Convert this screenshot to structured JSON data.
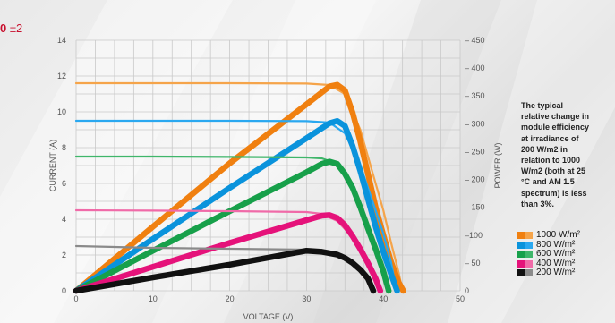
{
  "header": {
    "fragment": "0",
    "tolerance": "±2"
  },
  "note": "The typical relative change in module efficiency at irradiance of 200 W/m2 in relation to 1000 W/m2 (both at 25 °C and AM 1.5 spectrum) is less than 3%.",
  "chart_data": {
    "type": "line",
    "xlabel": "VOLTAGE (V)",
    "ylabel": "CURRENT (A)",
    "y2label": "POWER (W)",
    "xlim": [
      0,
      50
    ],
    "ylim": [
      0,
      14
    ],
    "y2lim": [
      0,
      450
    ],
    "x_ticks": [
      0,
      10,
      20,
      30,
      40,
      50
    ],
    "y_ticks": [
      0,
      2,
      4,
      6,
      8,
      10,
      12,
      14
    ],
    "y2_ticks": [
      0,
      50,
      100,
      150,
      200,
      250,
      300,
      350,
      400,
      450
    ],
    "y2_tick_labels": [
      "0",
      "– 50",
      "–100",
      "– 150",
      "– 200",
      "– 250",
      "– 300",
      "– 350",
      "– 400",
      "– 450"
    ],
    "grid": true,
    "legend_position": "right",
    "series": [
      {
        "name": "1000 W/m²",
        "iv_color": "#f5a44a",
        "pv_color": "#f08010",
        "iv": [
          [
            0,
            11.6
          ],
          [
            10,
            11.6
          ],
          [
            20,
            11.6
          ],
          [
            30,
            11.58
          ],
          [
            33,
            11.5
          ],
          [
            35,
            11
          ],
          [
            37,
            9
          ],
          [
            39,
            6
          ],
          [
            40,
            4.5
          ],
          [
            41,
            2.7
          ],
          [
            42,
            1
          ],
          [
            42.5,
            0
          ]
        ],
        "pv": [
          [
            0,
            0
          ],
          [
            10,
            115
          ],
          [
            20,
            229
          ],
          [
            30,
            335
          ],
          [
            33,
            367
          ],
          [
            34,
            370
          ],
          [
            35,
            360
          ],
          [
            36,
            320
          ],
          [
            37,
            268
          ],
          [
            38,
            210
          ],
          [
            39,
            150
          ],
          [
            40,
            100
          ],
          [
            41,
            52
          ],
          [
            42,
            15
          ],
          [
            42.6,
            0
          ]
        ]
      },
      {
        "name": "800 W/m²",
        "iv_color": "#2aa8f0",
        "pv_color": "#0a93dc",
        "iv": [
          [
            0,
            9.5
          ],
          [
            10,
            9.5
          ],
          [
            20,
            9.5
          ],
          [
            30,
            9.48
          ],
          [
            33,
            9.4
          ],
          [
            35,
            8.8
          ],
          [
            37,
            7
          ],
          [
            39,
            4.5
          ],
          [
            40,
            3.2
          ],
          [
            41,
            1.6
          ],
          [
            41.7,
            0
          ]
        ],
        "pv": [
          [
            0,
            0
          ],
          [
            10,
            93
          ],
          [
            20,
            185
          ],
          [
            30,
            274
          ],
          [
            33,
            301
          ],
          [
            34,
            305
          ],
          [
            35,
            296
          ],
          [
            36,
            260
          ],
          [
            37,
            215
          ],
          [
            38,
            165
          ],
          [
            39,
            115
          ],
          [
            40,
            70
          ],
          [
            41,
            30
          ],
          [
            41.8,
            0
          ]
        ]
      },
      {
        "name": "600 W/m²",
        "iv_color": "#3fb66a",
        "pv_color": "#17a04a",
        "iv": [
          [
            0,
            7.5
          ],
          [
            10,
            7.5
          ],
          [
            20,
            7.48
          ],
          [
            30,
            7.45
          ],
          [
            32,
            7.4
          ],
          [
            34,
            7.1
          ],
          [
            36,
            6
          ],
          [
            38,
            3.8
          ],
          [
            39,
            2.5
          ],
          [
            40,
            1.1
          ],
          [
            40.6,
            0
          ]
        ],
        "pv": [
          [
            0,
            0
          ],
          [
            10,
            72
          ],
          [
            20,
            143
          ],
          [
            30,
            213
          ],
          [
            32,
            228
          ],
          [
            33,
            232
          ],
          [
            34,
            228
          ],
          [
            35,
            210
          ],
          [
            36,
            185
          ],
          [
            37,
            150
          ],
          [
            38,
            112
          ],
          [
            39,
            75
          ],
          [
            40,
            35
          ],
          [
            40.7,
            0
          ]
        ]
      },
      {
        "name": "400 W/m²",
        "iv_color": "#f06aa8",
        "pv_color": "#e5127a",
        "iv": [
          [
            0,
            4.5
          ],
          [
            10,
            4.48
          ],
          [
            20,
            4.45
          ],
          [
            30,
            4.4
          ],
          [
            32,
            4.3
          ],
          [
            34,
            3.9
          ],
          [
            36,
            3
          ],
          [
            37,
            2.3
          ],
          [
            38,
            1.5
          ],
          [
            39,
            0.6
          ],
          [
            39.5,
            0
          ]
        ],
        "pv": [
          [
            0,
            0
          ],
          [
            10,
            43
          ],
          [
            20,
            86
          ],
          [
            30,
            127
          ],
          [
            32,
            135
          ],
          [
            33,
            136
          ],
          [
            34,
            131
          ],
          [
            35,
            118
          ],
          [
            36,
            98
          ],
          [
            37,
            75
          ],
          [
            38,
            50
          ],
          [
            39,
            22
          ],
          [
            39.6,
            0
          ]
        ]
      },
      {
        "name": "200 W/m²",
        "iv_color": "#8a8a8a",
        "pv_color": "#111111",
        "iv": [
          [
            0,
            2.5
          ],
          [
            10,
            2.4
          ],
          [
            20,
            2.35
          ],
          [
            30,
            2.3
          ],
          [
            33,
            2.15
          ],
          [
            35,
            1.8
          ],
          [
            37,
            1.2
          ],
          [
            38,
            0.7
          ],
          [
            38.7,
            0
          ]
        ],
        "pv": [
          [
            0,
            0
          ],
          [
            10,
            24
          ],
          [
            20,
            47
          ],
          [
            28,
            67
          ],
          [
            30,
            72
          ],
          [
            32,
            70
          ],
          [
            34,
            65
          ],
          [
            35,
            59
          ],
          [
            36,
            50
          ],
          [
            37,
            38
          ],
          [
            38,
            22
          ],
          [
            38.7,
            0
          ]
        ]
      }
    ]
  }
}
